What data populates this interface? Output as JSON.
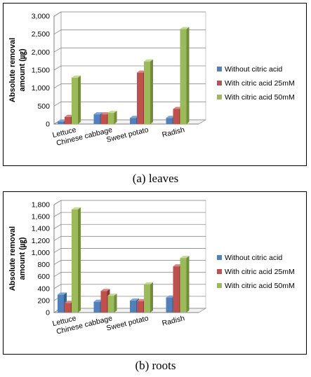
{
  "colors": {
    "series": [
      {
        "front": "#4F81BD",
        "top": "#7FA6D8",
        "side": "#35608F"
      },
      {
        "front": "#C0504D",
        "top": "#DA8482",
        "side": "#8E3431"
      },
      {
        "front": "#9BBB59",
        "top": "#C4DB92",
        "side": "#718D3B"
      }
    ],
    "grid": "#8a8a8a",
    "wall": "#ffffff"
  },
  "chart_data": [
    {
      "type": "bar",
      "caption": "(a) leaves",
      "ylabel": "Absolute removal amount (㎍)",
      "ylabel_lines": [
        "Absolute removal",
        "amount (㎍)"
      ],
      "categories": [
        "Lettuce",
        "Chinese cabbage",
        "Sweet potato",
        "Radish"
      ],
      "ylim": [
        0,
        3000
      ],
      "ytick_step": 500,
      "ytick_labels": [
        "0",
        "500",
        "1,000",
        "1,500",
        "2,000",
        "2,500",
        "3,000"
      ],
      "grid": true,
      "legend_position": "right",
      "series": [
        {
          "name": "Without citric acid",
          "values": [
            70,
            270,
            170,
            170
          ]
        },
        {
          "name": "With citric acid 25mM",
          "values": [
            200,
            270,
            1430,
            420
          ]
        },
        {
          "name": "With citric acid 50mM",
          "values": [
            1290,
            310,
            1740,
            2640
          ]
        }
      ]
    },
    {
      "type": "bar",
      "caption": "(b) roots",
      "ylabel": "Absolute removal amount (㎍)",
      "ylabel_lines": [
        "Absolute removal",
        "amount (㎍)"
      ],
      "categories": [
        "Lettuce",
        "Chinese cabbage",
        "Sweet potato",
        "Radish"
      ],
      "ylim": [
        0,
        1800
      ],
      "ytick_step": 200,
      "ytick_labels": [
        "0",
        "200",
        "400",
        "600",
        "800",
        "1,000",
        "1,200",
        "1,400",
        "1,600",
        "1,800"
      ],
      "grid": true,
      "legend_position": "right",
      "series": [
        {
          "name": "Without citric acid",
          "values": [
            300,
            180,
            200,
            250
          ]
        },
        {
          "name": "With citric acid 25mM",
          "values": [
            160,
            360,
            190,
            770
          ]
        },
        {
          "name": "With citric acid 50mM",
          "values": [
            1720,
            280,
            470,
            910
          ]
        }
      ]
    }
  ]
}
